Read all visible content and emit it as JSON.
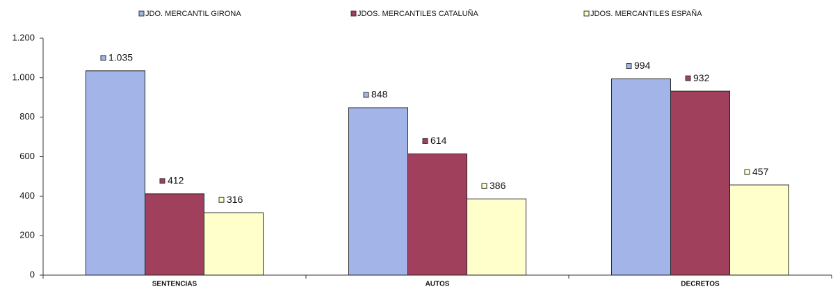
{
  "chart_data": {
    "type": "bar",
    "categories": [
      "SENTENCIAS",
      "AUTOS",
      "DECRETOS"
    ],
    "series": [
      {
        "name": "JDO. MERCANTIL GIRONA",
        "color": "#a3b5e8",
        "values": [
          1035,
          848,
          994
        ],
        "value_labels": [
          "1.035",
          "848",
          "994"
        ]
      },
      {
        "name": "JDOS. MERCANTILES CATALUÑA",
        "color": "#a1405c",
        "values": [
          412,
          614,
          932
        ]
      },
      {
        "name": "JDOS. MERCANTILES ESPAÑA",
        "color": "#ffffcc",
        "values": [
          316,
          386,
          457
        ]
      }
    ],
    "ylim": [
      0,
      1200
    ],
    "yticks": [
      0,
      200,
      400,
      600,
      800,
      {
        "value": 1000,
        "label": "1.000"
      },
      {
        "value": 1200,
        "label": "1.200"
      }
    ],
    "grid": false,
    "legend": "top"
  }
}
